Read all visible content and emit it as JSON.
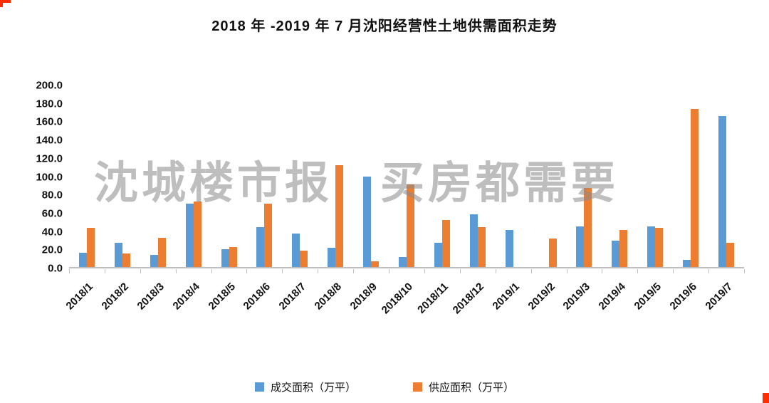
{
  "title": "2018 年 -2019 年 7 月沈阳经营性土地供需面积走势",
  "watermark": "沈城楼市报　买房都需要",
  "chart_data": {
    "type": "bar",
    "title": "2018 年 -2019 年 7 月沈阳经营性土地供需面积走势",
    "categories": [
      "2018/1",
      "2018/2",
      "2018/3",
      "2018/4",
      "2018/5",
      "2018/6",
      "2018/7",
      "2018/8",
      "2018/9",
      "2018/10",
      "2018/11",
      "2018/12",
      "2019/1",
      "2019/2",
      "2019/3",
      "2019/4",
      "2019/5",
      "2019/6",
      "2019/7"
    ],
    "series": [
      {
        "name": "成交面积（万平）",
        "color": "#5B9BD5",
        "values": [
          16,
          27,
          13,
          70,
          20,
          44,
          37,
          21,
          100,
          11,
          27,
          58,
          41,
          0,
          45,
          29,
          45,
          8,
          166
        ]
      },
      {
        "name": "供应面积（万平）",
        "color": "#ED7D31",
        "values": [
          43,
          15,
          32,
          72,
          22,
          70,
          18,
          112,
          6,
          91,
          52,
          44,
          0,
          31,
          87,
          41,
          43,
          174,
          27
        ]
      }
    ],
    "xlabel": "",
    "ylabel": "",
    "ylim": [
      0,
      200
    ],
    "ytick_step": 20,
    "ytick_labels": [
      "0.0",
      "20.0",
      "40.0",
      "60.0",
      "80.0",
      "100.0",
      "120.0",
      "140.0",
      "160.0",
      "180.0",
      "200.0"
    ],
    "grid": false,
    "legend_position": "bottom"
  }
}
